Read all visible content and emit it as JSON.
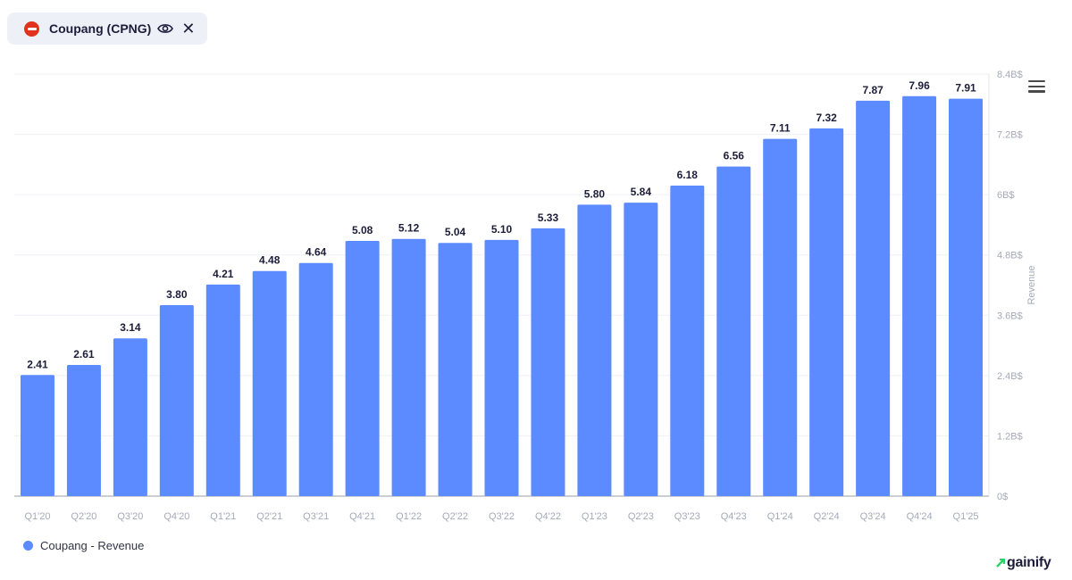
{
  "header": {
    "ticker_label": "Coupang (CPNG)",
    "eye_icon": "eye-icon",
    "close_icon": "close-icon",
    "close_glyph": "✕"
  },
  "toolbar": {
    "menu_icon": "hamburger-menu-icon"
  },
  "colors": {
    "bar": "#5b8bff",
    "logo": "#e0321c",
    "brand_accent": "#2bd46a"
  },
  "legend": {
    "label": "Coupang - Revenue"
  },
  "brand": {
    "name": "gainify"
  },
  "chart_data": {
    "type": "bar",
    "categories": [
      "Q1'20",
      "Q2'20",
      "Q3'20",
      "Q4'20",
      "Q1'21",
      "Q2'21",
      "Q3'21",
      "Q4'21",
      "Q1'22",
      "Q2'22",
      "Q3'22",
      "Q4'22",
      "Q1'23",
      "Q2'23",
      "Q3'23",
      "Q4'23",
      "Q1'24",
      "Q2'24",
      "Q3'24",
      "Q4'24",
      "Q1'25"
    ],
    "series": [
      {
        "name": "Coupang - Revenue",
        "values": [
          2.41,
          2.61,
          3.14,
          3.8,
          4.21,
          4.48,
          4.64,
          5.08,
          5.12,
          5.04,
          5.1,
          5.33,
          5.8,
          5.84,
          6.18,
          6.56,
          7.11,
          7.32,
          7.87,
          7.96,
          7.91
        ],
        "labels": [
          "2.41",
          "2.61",
          "3.14",
          "3.80",
          "4.21",
          "4.48",
          "4.64",
          "5.08",
          "5.12",
          "5.04",
          "5.10",
          "5.33",
          "5.80",
          "5.84",
          "6.18",
          "6.56",
          "7.11",
          "7.32",
          "7.87",
          "7.96",
          "7.91"
        ]
      }
    ],
    "ylabel": "Revenue",
    "y_axis_position": "right",
    "ylim": [
      0,
      8.4
    ],
    "yticks": [
      0,
      1.2,
      2.4,
      3.6,
      4.8,
      6,
      7.2,
      8.4
    ],
    "ytick_labels": [
      "0$",
      "1.2B$",
      "2.4B$",
      "3.6B$",
      "4.8B$",
      "6B$",
      "7.2B$",
      "8.4B$"
    ],
    "grid": true,
    "legend_position": "bottom-left"
  }
}
